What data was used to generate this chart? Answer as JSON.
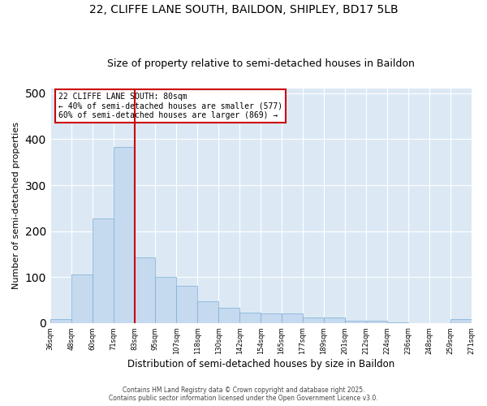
{
  "title_line1": "22, CLIFFE LANE SOUTH, BAILDON, SHIPLEY, BD17 5LB",
  "title_line2": "Size of property relative to semi-detached houses in Baildon",
  "xlabel": "Distribution of semi-detached houses by size in Baildon",
  "ylabel": "Number of semi-detached properties",
  "categories": [
    "36sqm",
    "48sqm",
    "60sqm",
    "71sqm",
    "83sqm",
    "95sqm",
    "107sqm",
    "118sqm",
    "130sqm",
    "142sqm",
    "154sqm",
    "165sqm",
    "177sqm",
    "189sqm",
    "201sqm",
    "212sqm",
    "224sqm",
    "236sqm",
    "248sqm",
    "259sqm",
    "271sqm"
  ],
  "bar_heights": [
    8,
    105,
    228,
    383,
    143,
    101,
    80,
    47,
    33,
    22,
    20,
    20,
    12,
    11,
    5,
    5,
    2,
    0,
    0,
    8
  ],
  "bar_color": "#c5d9ef",
  "bar_edge_color": "#7aafd4",
  "vline_index": 4,
  "vline_color": "#cc0000",
  "annotation_text": "22 CLIFFE LANE SOUTH: 80sqm\n← 40% of semi-detached houses are smaller (577)\n60% of semi-detached houses are larger (869) →",
  "annotation_box_color": "#ffffff",
  "annotation_box_edge": "#cc0000",
  "footer_line1": "Contains HM Land Registry data © Crown copyright and database right 2025.",
  "footer_line2": "Contains public sector information licensed under the Open Government Licence v3.0.",
  "background_color": "#dce9f5",
  "ylim": [
    0,
    510
  ],
  "ylabel_fontsize": 8,
  "xlabel_fontsize": 8.5,
  "title_fontsize": 10,
  "subtitle_fontsize": 9
}
